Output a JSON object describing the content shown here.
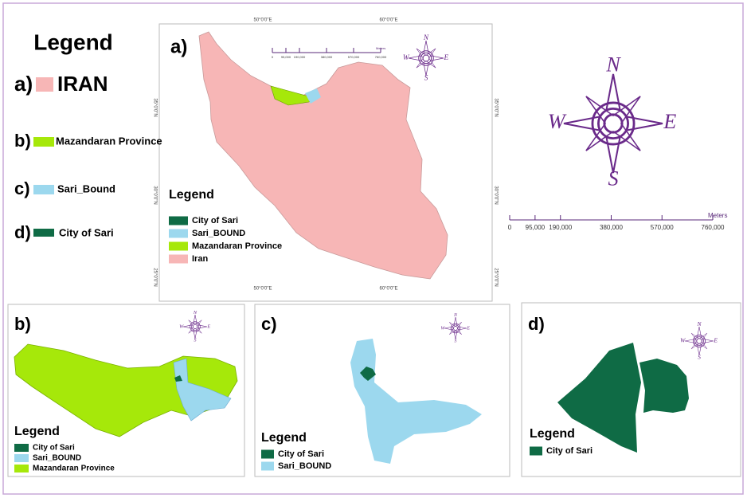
{
  "legend": {
    "title": "Legend",
    "items": [
      {
        "letter": "a)",
        "label": "IRAN",
        "color": "#f7b6b6"
      },
      {
        "letter": "b)",
        "label": "Mazandaran Province",
        "color": "#a6e80a"
      },
      {
        "letter": "c)",
        "label": "Sari_Bound",
        "color": "#9cd8ee"
      },
      {
        "letter": "d)",
        "label": "City of Sari",
        "color": "#0f6b45"
      }
    ]
  },
  "compass": {
    "n": "N",
    "e": "E",
    "s": "S",
    "w": "W"
  },
  "scale": {
    "labels": [
      "0",
      "95,000",
      "190,000",
      "380,000",
      "570,000",
      "760,000"
    ],
    "unit": "Meters"
  },
  "panels": [
    {
      "letter": "a)",
      "coords": {
        "top": [
          "50°0'0\"E",
          "60°0'0\"E"
        ],
        "bottom": [
          "50°0'0\"E",
          "60°0'0\"E"
        ],
        "left": [
          "35°0'0\"N",
          "30°0'0\"N",
          "25°0'0\"N"
        ],
        "right": [
          "35°0'0\"N",
          "30°0'0\"N",
          "25°0'0\"N"
        ]
      },
      "legend_title": "Legend",
      "legend_items": [
        {
          "label": "City of Sari",
          "color": "#0f6b45"
        },
        {
          "label": "Sari_BOUND",
          "color": "#9cd8ee"
        },
        {
          "label": "Mazandaran Province",
          "color": "#a6e80a"
        },
        {
          "label": "Iran",
          "color": "#f7b6b6"
        }
      ]
    },
    {
      "letter": "b)",
      "legend_title": "Legend",
      "legend_items": [
        {
          "label": "City of Sari",
          "color": "#0f6b45"
        },
        {
          "label": "Sari_BOUND",
          "color": "#9cd8ee"
        },
        {
          "label": "Mazandaran Province",
          "color": "#a6e80a"
        }
      ]
    },
    {
      "letter": "c)",
      "legend_title": "Legend",
      "legend_items": [
        {
          "label": "City of Sari",
          "color": "#0f6b45"
        },
        {
          "label": "Sari_BOUND",
          "color": "#9cd8ee"
        }
      ]
    },
    {
      "letter": "d)",
      "legend_title": "Legend",
      "legend_items": [
        {
          "label": "City of Sari",
          "color": "#0f6b45"
        }
      ]
    }
  ]
}
